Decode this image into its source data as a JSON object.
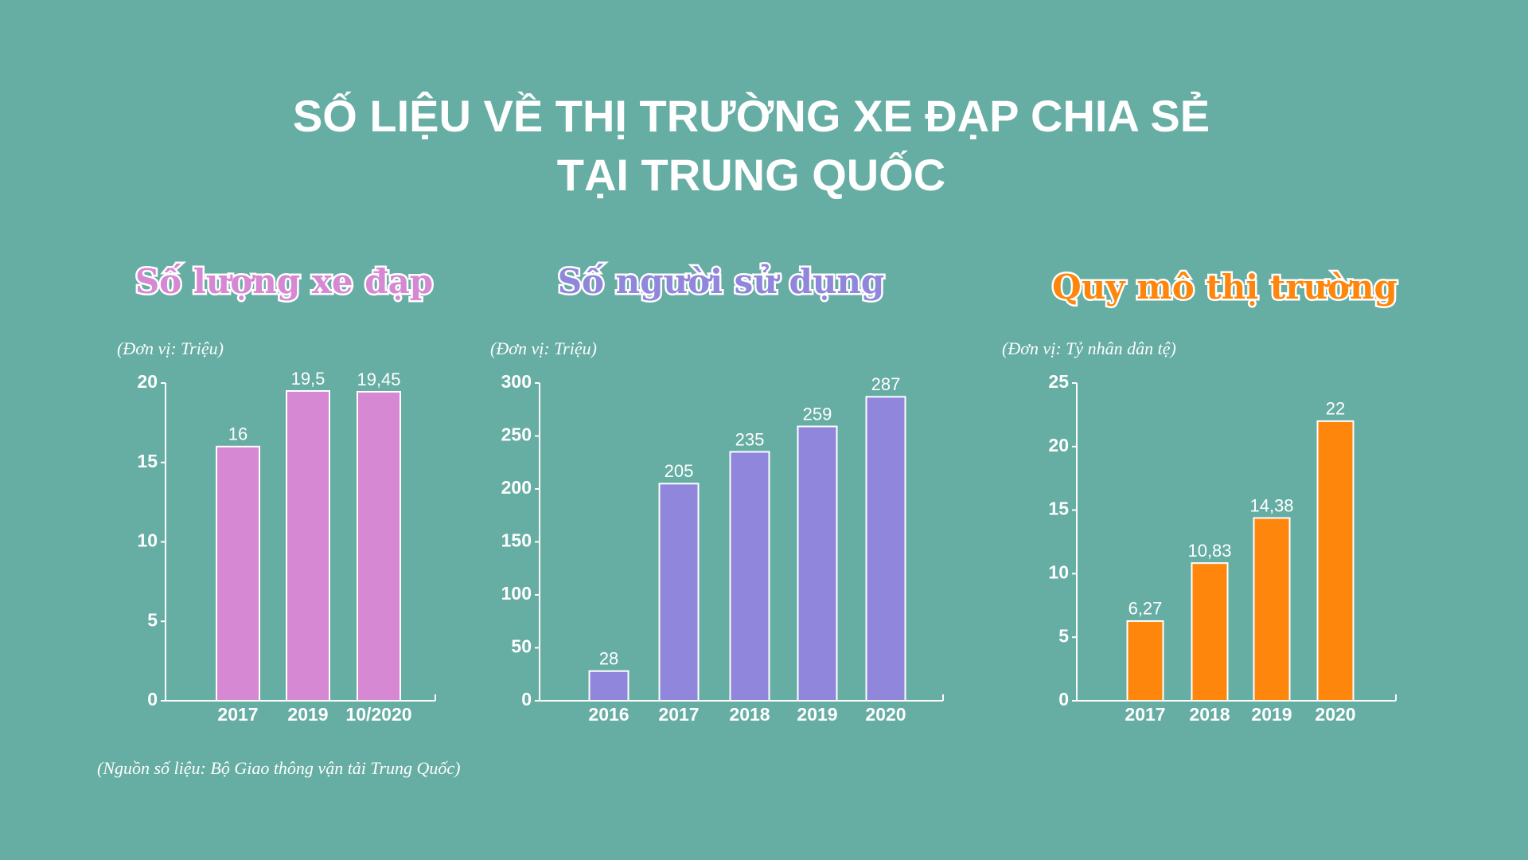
{
  "header": {
    "title": [
      "SỐ LIỆU VỀ THỊ TRƯỜNG XE ĐẠP CHIA SẺ",
      "TẠI TRUNG QUỐC"
    ]
  },
  "source": "(Nguồn số liệu: Bộ Giao thông vận tải Trung Quốc)",
  "chart_data": [
    {
      "type": "bar",
      "title": "Số lượng xe đạp",
      "unit": "(Đơn vị: Triệu)",
      "categories": [
        "2017",
        "2019",
        "10/2020"
      ],
      "values": [
        16,
        19.5,
        19.45
      ],
      "value_labels": [
        "16",
        "19,5",
        "19,45"
      ],
      "color": "#d688d3",
      "ylim": [
        0,
        20
      ],
      "yticks": [
        0,
        5,
        10,
        15,
        20
      ]
    },
    {
      "type": "bar",
      "title": "Số người sử dụng",
      "unit": "(Đơn vị: Triệu)",
      "categories": [
        "2016",
        "2017",
        "2018",
        "2019",
        "2020"
      ],
      "values": [
        28,
        205,
        235,
        259,
        287
      ],
      "color": "#9086db",
      "ylim": [
        0,
        300
      ],
      "yticks": [
        0,
        50,
        100,
        150,
        200,
        250,
        300
      ]
    },
    {
      "type": "bar",
      "title": "Quy mô thị trường",
      "unit": "(Đơn vị: Tỷ nhân dân tệ)",
      "categories": [
        "2017",
        "2018",
        "2019",
        "2020"
      ],
      "values": [
        6.27,
        10.83,
        14.38,
        22
      ],
      "value_labels": [
        "6,27",
        "10,83",
        "14,38",
        "22"
      ],
      "color": "#ff860d",
      "ylim": [
        0,
        25
      ],
      "yticks": [
        0,
        5,
        10,
        15,
        20,
        25
      ]
    }
  ]
}
